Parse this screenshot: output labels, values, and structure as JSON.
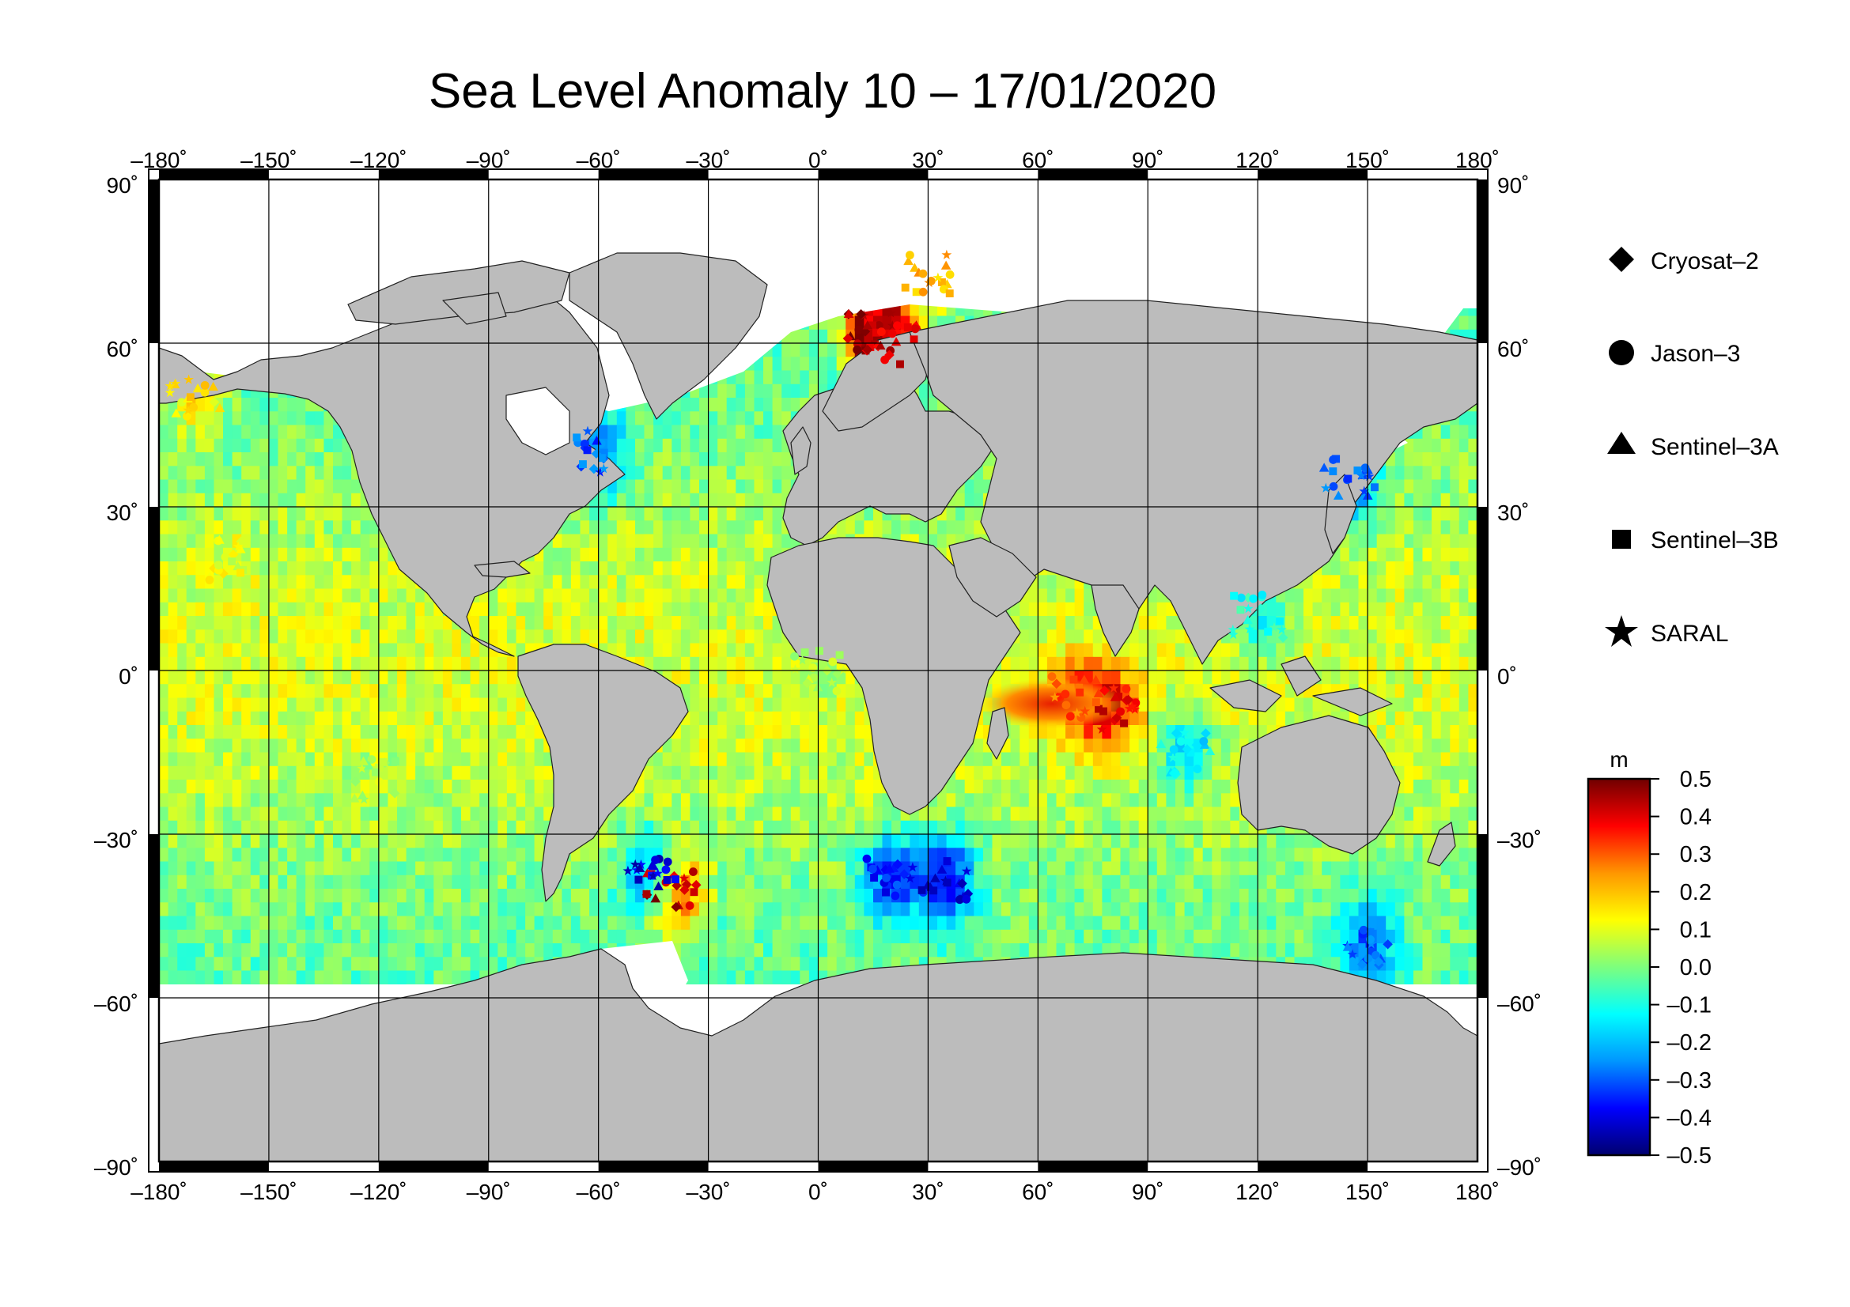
{
  "title": "Sea Level Anomaly 10 – 17/01/2020",
  "axes": {
    "lon_ticks": [
      -180,
      -150,
      -120,
      -90,
      -60,
      -30,
      0,
      30,
      60,
      90,
      120,
      150,
      180
    ],
    "lat_ticks": [
      90,
      60,
      30,
      0,
      -30,
      -60,
      -90
    ],
    "lon_labels": [
      "–180˚",
      "–150˚",
      "–120˚",
      "–90˚",
      "–60˚",
      "–30˚",
      "0˚",
      "30˚",
      "60˚",
      "90˚",
      "120˚",
      "150˚",
      "180˚"
    ],
    "lat_labels": [
      "90˚",
      "60˚",
      "30˚",
      "0˚",
      "–30˚",
      "–60˚",
      "–90˚"
    ],
    "lon_range": [
      -180,
      180
    ],
    "lat_range": [
      -90,
      90
    ],
    "grid": true
  },
  "legend": {
    "items": [
      {
        "label": "Cryosat–2",
        "marker": "diamond"
      },
      {
        "label": "Jason–3",
        "marker": "circle"
      },
      {
        "label": "Sentinel–3A",
        "marker": "triangle"
      },
      {
        "label": "Sentinel–3B",
        "marker": "square"
      },
      {
        "label": "SARAL",
        "marker": "star"
      }
    ]
  },
  "colorbar": {
    "unit": "m",
    "range": [
      -0.5,
      0.5
    ],
    "tick_labels": [
      "0.5",
      "0.4",
      "0.3",
      "0.2",
      "0.1",
      "0.0",
      "–0.1",
      "–0.2",
      "–0.3",
      "–0.4",
      "–0.5"
    ],
    "colormap": [
      "#00006e",
      "#0000ff",
      "#0096ff",
      "#00ffff",
      "#7dff7d",
      "#ffff00",
      "#ff9600",
      "#ff0000",
      "#700000"
    ]
  },
  "colors": {
    "land": "#bcbcbc",
    "ocean_no_data": "#ffffff",
    "frame": "#000000"
  },
  "chart_data": {
    "type": "map",
    "variable": "Sea Level Anomaly",
    "unit": "m",
    "period": "10 – 17/01/2020",
    "sample_points": [
      {
        "lon": 80,
        "lat": -7,
        "sla": 0.4
      },
      {
        "lon": 70,
        "lat": -5,
        "sla": 0.3
      },
      {
        "lon": 15,
        "lat": 62,
        "sla": 0.45
      },
      {
        "lon": 20,
        "lat": 60,
        "sla": 0.4
      },
      {
        "lon": 30,
        "lat": 73,
        "sla": 0.2
      },
      {
        "lon": -40,
        "lat": -40,
        "sla": 0.45
      },
      {
        "lon": -45,
        "lat": -38,
        "sla": -0.4
      },
      {
        "lon": -60,
        "lat": 40,
        "sla": -0.3
      },
      {
        "lon": 145,
        "lat": 35,
        "sla": -0.3
      },
      {
        "lon": 20,
        "lat": -38,
        "sla": -0.35
      },
      {
        "lon": 35,
        "lat": -38,
        "sla": -0.4
      },
      {
        "lon": 150,
        "lat": -50,
        "sla": -0.3
      },
      {
        "lon": -160,
        "lat": 20,
        "sla": 0.1
      },
      {
        "lon": -120,
        "lat": -20,
        "sla": 0.05
      },
      {
        "lon": -170,
        "lat": 50,
        "sla": 0.15
      },
      {
        "lon": 120,
        "lat": 10,
        "sla": -0.1
      },
      {
        "lon": 100,
        "lat": -15,
        "sla": -0.15
      },
      {
        "lon": 0,
        "lat": 0,
        "sla": 0.05
      }
    ]
  }
}
